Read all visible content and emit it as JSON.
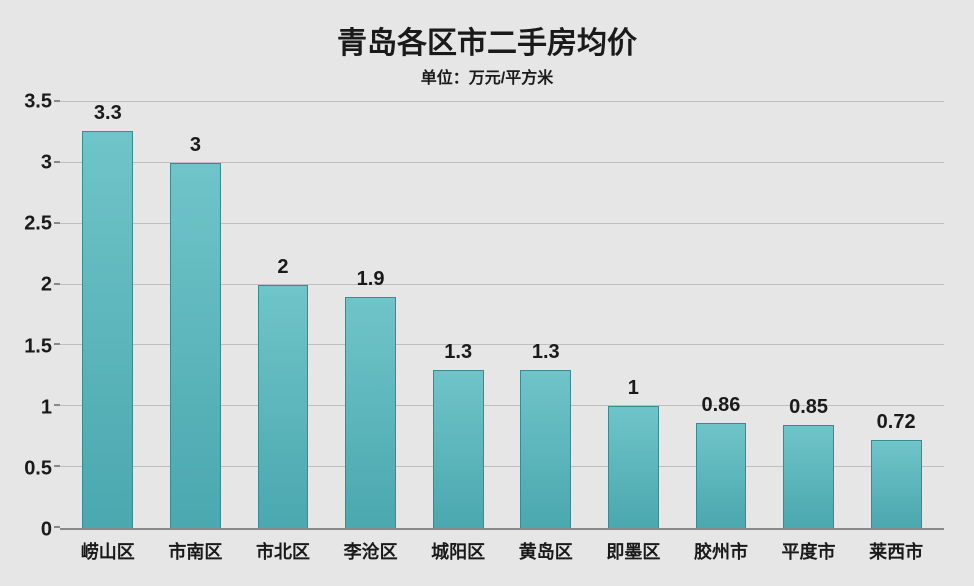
{
  "chart": {
    "type": "bar",
    "title": "青岛各区市二手房均价",
    "title_fontsize": 30,
    "subtitle": "单位：万元/平方米",
    "subtitle_fontsize": 16,
    "background_color": "#e6e6e6",
    "grid_color": "#bfbfbf",
    "axis_color": "#888888",
    "text_color": "#1a1a1a",
    "bar_fill_top": "#6fc4c9",
    "bar_fill_bottom": "#4aa8ae",
    "bar_border": "#3a8a90",
    "bar_width_ratio": 0.58,
    "categories": [
      "崂山区",
      "市南区",
      "市北区",
      "李沧区",
      "城阳区",
      "黄岛区",
      "即墨区",
      "胶州市",
      "平度市",
      "莱西市"
    ],
    "values": [
      3.3,
      3,
      2,
      1.9,
      1.3,
      1.3,
      1,
      0.86,
      0.85,
      0.72
    ],
    "value_labels": [
      "3.3",
      "3",
      "2",
      "1.9",
      "1.3",
      "1.3",
      "1",
      "0.86",
      "0.85",
      "0.72"
    ],
    "y_axis": {
      "min": 0,
      "max": 3.5,
      "tick_step": 0.5,
      "ticks": [
        0,
        0.5,
        1,
        1.5,
        2,
        2.5,
        3,
        3.5
      ],
      "tick_labels": [
        "0",
        "0.5",
        "1",
        "1.5",
        "2",
        "2.5",
        "3",
        "3.5"
      ],
      "label_fontsize": 20
    },
    "x_axis": {
      "label_fontsize": 18
    },
    "value_label_fontsize": 20
  }
}
